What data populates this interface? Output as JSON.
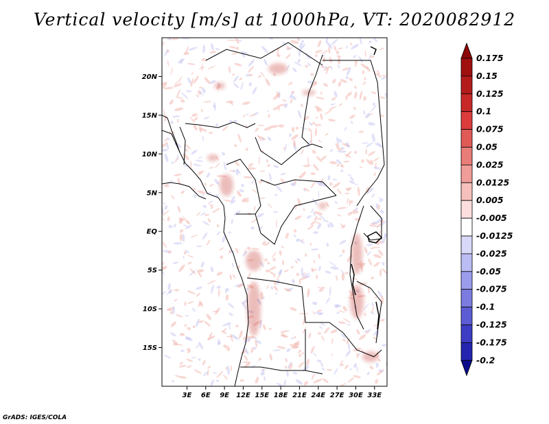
{
  "title": "Vertical velocity [m/s] at 1000hPa, VT: 2020082912",
  "credit": "GrADS: IGES/COLA",
  "map": {
    "lon_range": [
      -1,
      35
    ],
    "lat_range": [
      -20,
      25
    ],
    "lat_ticks": [
      {
        "value": 20,
        "label": "20N"
      },
      {
        "value": 15,
        "label": "15N"
      },
      {
        "value": 10,
        "label": "10N"
      },
      {
        "value": 5,
        "label": "5N"
      },
      {
        "value": 0,
        "label": "EQ"
      },
      {
        "value": -5,
        "label": "5S"
      },
      {
        "value": -10,
        "label": "10S"
      },
      {
        "value": -15,
        "label": "15S"
      }
    ],
    "lon_ticks": [
      {
        "value": 3,
        "label": "3E"
      },
      {
        "value": 6,
        "label": "6E"
      },
      {
        "value": 9,
        "label": "9E"
      },
      {
        "value": 12,
        "label": "12E"
      },
      {
        "value": 15,
        "label": "15E"
      },
      {
        "value": 18,
        "label": "18E"
      },
      {
        "value": 21,
        "label": "21E"
      },
      {
        "value": 24,
        "label": "24E"
      },
      {
        "value": 27,
        "label": "27E"
      },
      {
        "value": 30,
        "label": "30E"
      },
      {
        "value": 33,
        "label": "33E"
      }
    ],
    "field_colors": {
      "positive": "#f2b8b0",
      "positive_strong": "#c8443c",
      "negative": "#c8c8f4"
    }
  },
  "colorbar": {
    "levels": [
      {
        "label": "0.175",
        "color": "#a01010"
      },
      {
        "label": "0.15",
        "color": "#b41c1c"
      },
      {
        "label": "0.125",
        "color": "#c82828"
      },
      {
        "label": "0.1",
        "color": "#dc3c3c"
      },
      {
        "label": "0.075",
        "color": "#e05a56"
      },
      {
        "label": "0.05",
        "color": "#e87c78"
      },
      {
        "label": "0.025",
        "color": "#f09c98"
      },
      {
        "label": "0.0125",
        "color": "#f6c0bc"
      },
      {
        "label": "0.005",
        "color": "#fcdede"
      },
      {
        "label": "-0.005",
        "color": "#ffffff"
      },
      {
        "label": "-0.0125",
        "color": "#d8d8f8"
      },
      {
        "label": "-0.025",
        "color": "#bcbcf4"
      },
      {
        "label": "-0.05",
        "color": "#9c9cec"
      },
      {
        "label": "-0.075",
        "color": "#7c7ce0"
      },
      {
        "label": "-0.1",
        "color": "#5c5cd4"
      },
      {
        "label": "-0.125",
        "color": "#3c3cc4"
      },
      {
        "label": "-0.175",
        "color": "#2424b0"
      },
      {
        "label": "-0.2",
        "color": "#14149c"
      }
    ],
    "top_color": "#8c0808",
    "bottom_color": "#0a0a8c"
  }
}
